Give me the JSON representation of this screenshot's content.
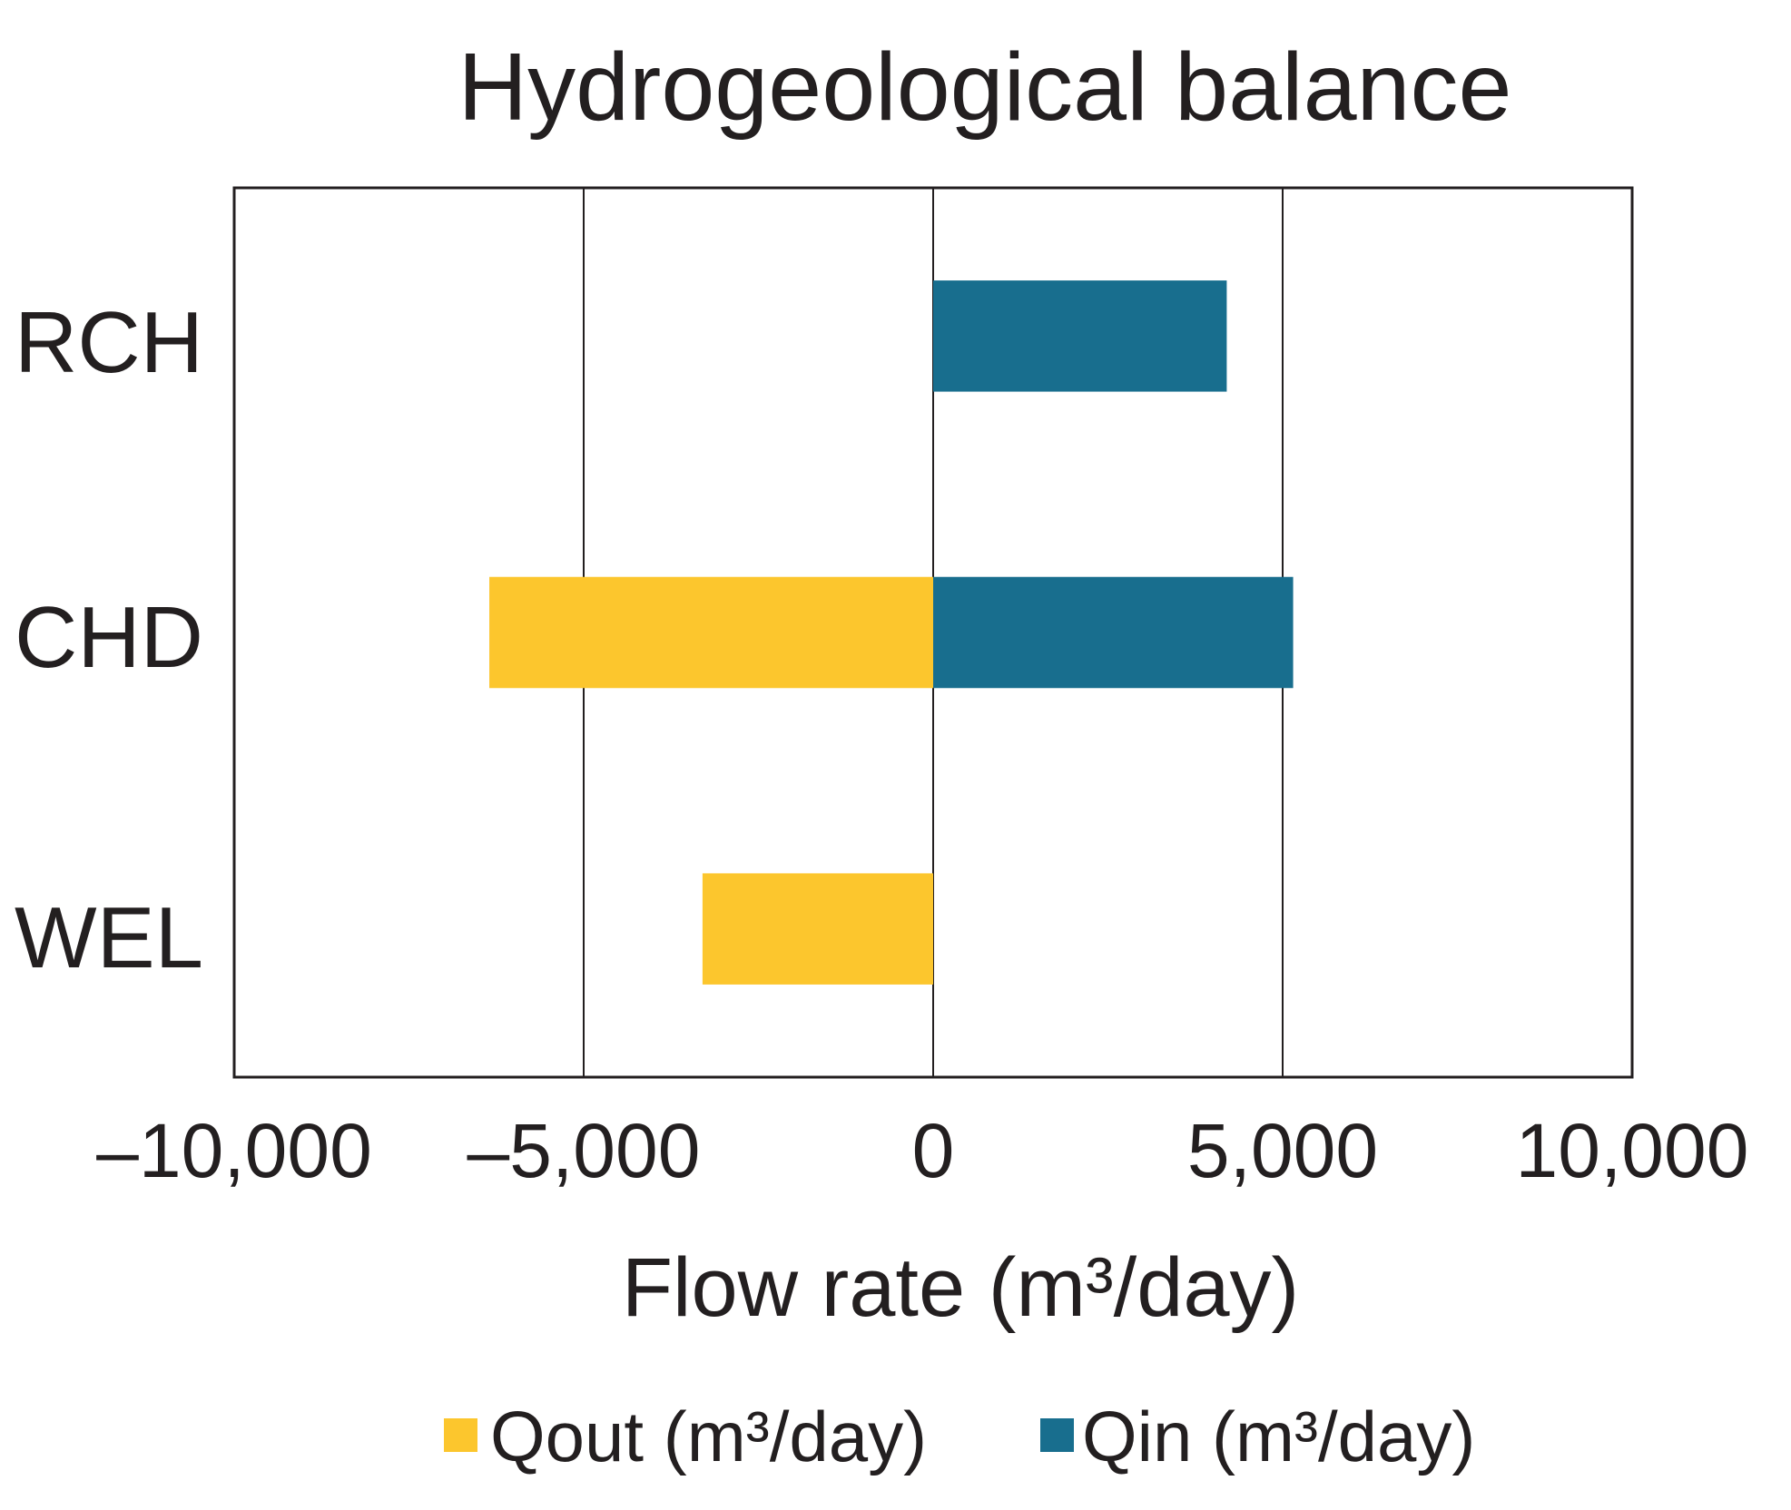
{
  "chart_data": {
    "type": "bar",
    "orientation": "horizontal",
    "title": "Hydrogeological balance",
    "categories": [
      "RCH",
      "CHD",
      "WEL"
    ],
    "series": [
      {
        "name": "Qout (m³/day)",
        "color": "#fcc62d",
        "values": [
          0,
          -6350,
          -3300
        ]
      },
      {
        "name": "Qin (m³/day)",
        "color": "#186e8e",
        "values": [
          4200,
          5150,
          0
        ]
      }
    ],
    "xlabel": "Flow rate (m³/day)",
    "ylabel": "",
    "xlim": [
      -10000,
      10000
    ],
    "xticks": [
      -10000,
      -5000,
      0,
      5000,
      10000
    ],
    "xtick_labels": [
      "–10,000",
      "–5,000",
      "0",
      "5,000",
      "10,000"
    ],
    "grid": "vertical lines at major ticks",
    "legend": "bottom"
  }
}
